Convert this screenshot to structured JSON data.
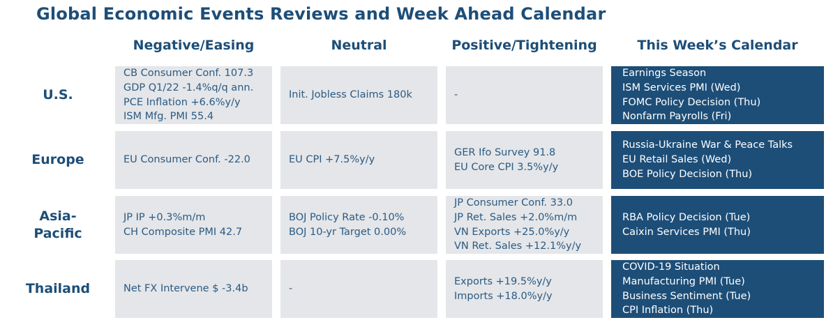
{
  "title": "Global Economic Events Reviews and Week Ahead Calendar",
  "columns": [
    "Negative/Easing",
    "Neutral",
    "Positive/Tightening",
    "This Week’s Calendar"
  ],
  "rows": [
    {
      "label": [
        "U.S."
      ],
      "negative": [
        "CB Consumer Conf. 107.3",
        "GDP Q1/22 -1.4%q/q ann.",
        "PCE Inflation +6.6%y/y",
        "ISM Mfg. PMI 55.4"
      ],
      "neutral": [
        "Init. Jobless Claims 180k"
      ],
      "positive": [
        "-"
      ],
      "calendar": [
        "Earnings Season",
        "ISM Services PMI (Wed)",
        "FOMC Policy Decision (Thu)",
        "Nonfarm Payrolls (Fri)"
      ]
    },
    {
      "label": [
        "Europe"
      ],
      "negative": [
        "EU Consumer Conf. -22.0"
      ],
      "neutral": [
        "EU CPI +7.5%y/y"
      ],
      "positive": [
        "GER Ifo Survey 91.8",
        "EU Core CPI 3.5%y/y"
      ],
      "calendar": [
        "Russia-Ukraine War & Peace Talks",
        "EU Retail Sales (Wed)",
        "BOE Policy Decision (Thu)"
      ]
    },
    {
      "label": [
        "Asia-",
        "Pacific"
      ],
      "negative": [
        "JP IP +0.3%m/m",
        "CH Composite PMI 42.7"
      ],
      "neutral": [
        "BOJ Policy Rate -0.10%",
        "BOJ 10-yr Target 0.00%"
      ],
      "positive": [
        "JP Consumer Conf. 33.0",
        "JP Ret. Sales +2.0%m/m",
        "VN Exports +25.0%y/y",
        "VN Ret. Sales +12.1%y/y"
      ],
      "calendar": [
        "RBA Policy Decision (Tue)",
        "Caixin Services PMI (Thu)"
      ]
    },
    {
      "label": [
        "Thailand"
      ],
      "negative": [
        "Net FX Intervene $ -3.4b"
      ],
      "neutral": [
        "-"
      ],
      "positive": [
        "Exports +19.5%y/y",
        "Imports +18.0%y/y"
      ],
      "calendar": [
        "COVID-19 Situation",
        "Manufacturing PMI (Tue)",
        "Business Sentiment (Tue)",
        "CPI Inflation (Thu)"
      ]
    }
  ],
  "colors": {
    "navy": "#1d4e78",
    "cell_grey": "#e4e6e9",
    "cell_text": "#2c5a82"
  }
}
